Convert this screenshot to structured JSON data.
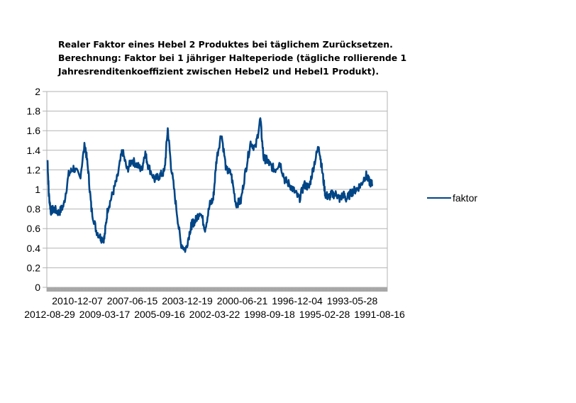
{
  "chart_data": {
    "type": "line",
    "title_lines": [
      "Realer Faktor eines Hebel 2 Produktes bei täglichem Zurücksetzen.",
      "Berechnung: Faktor bei 1 jähriger Halteperiode (tägliche rollierende 1",
      "Jahresrenditenkoeffizient zwischen Hebel2 und Hebel1 Produkt)."
    ],
    "xlabel": "",
    "ylabel": "",
    "ylim": [
      0,
      2
    ],
    "yticks": [
      "0",
      "0.2",
      "0.4",
      "0.6",
      "0.8",
      "1",
      "1.2",
      "1.4",
      "1.6",
      "1.8",
      "2"
    ],
    "xtick_labels_row1": [
      "2010-12-07",
      "2007-06-15",
      "2003-12-19",
      "2000-06-21",
      "1996-12-04",
      "1993-05-28"
    ],
    "xtick_labels_row2": [
      "2012-08-29",
      "2009-03-17",
      "2005-09-16",
      "2002-03-22",
      "1998-09-18",
      "1995-02-28",
      "1991-08-16"
    ],
    "x_order": "newest to oldest (2012-08-29 to about 1991)",
    "grid": true,
    "legend_position": "right",
    "series": [
      {
        "name": "faktor",
        "color": "#004586",
        "x_fraction_of_span": [
          0.0,
          0.004,
          0.01,
          0.02,
          0.035,
          0.05,
          0.065,
          0.08,
          0.1,
          0.115,
          0.125,
          0.135,
          0.15,
          0.165,
          0.175,
          0.185,
          0.2,
          0.215,
          0.23,
          0.245,
          0.26,
          0.275,
          0.29,
          0.3,
          0.31,
          0.33,
          0.345,
          0.36,
          0.37,
          0.38,
          0.395,
          0.41,
          0.425,
          0.44,
          0.445,
          0.455,
          0.47,
          0.485,
          0.5,
          0.51,
          0.52,
          0.535,
          0.55,
          0.565,
          0.58,
          0.595,
          0.61,
          0.625,
          0.64,
          0.655,
          0.665,
          0.675,
          0.685,
          0.7,
          0.715,
          0.73,
          0.745,
          0.76,
          0.775,
          0.79,
          0.805,
          0.82,
          0.835,
          0.845,
          0.855,
          0.865,
          0.875,
          0.89,
          0.9,
          0.91,
          0.92,
          0.935,
          0.95,
          0.965,
          0.98,
          0.99,
          1.0
        ],
        "values": [
          1.3,
          0.95,
          0.78,
          0.8,
          0.76,
          0.84,
          1.15,
          1.22,
          1.12,
          1.47,
          1.2,
          0.8,
          0.58,
          0.5,
          0.5,
          0.8,
          0.95,
          1.12,
          1.4,
          1.2,
          1.3,
          1.25,
          1.2,
          1.38,
          1.24,
          1.1,
          1.14,
          1.18,
          1.62,
          1.25,
          0.85,
          0.45,
          0.38,
          0.6,
          0.65,
          0.68,
          0.78,
          0.6,
          0.85,
          0.9,
          1.3,
          1.58,
          1.2,
          1.16,
          0.85,
          0.88,
          1.2,
          1.48,
          1.42,
          1.72,
          1.32,
          1.3,
          1.25,
          1.2,
          1.28,
          1.1,
          1.05,
          0.98,
          0.9,
          1.05,
          1.02,
          1.25,
          1.45,
          1.2,
          0.95,
          0.92,
          0.95,
          0.95,
          0.9,
          0.95,
          0.9,
          0.97,
          1.0,
          1.05,
          1.15,
          1.08,
          1.05
        ]
      }
    ]
  }
}
